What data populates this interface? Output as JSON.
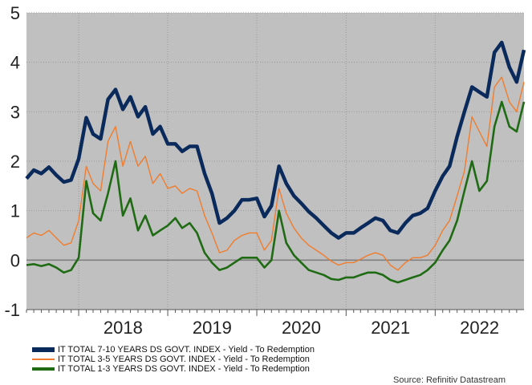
{
  "chart_data": {
    "type": "line",
    "title": "",
    "xlabel": "",
    "ylabel": "",
    "ylim": [
      -1,
      5
    ],
    "xlim": [
      "2017-06-01",
      "2022-12-31"
    ],
    "yticks": [
      5,
      4,
      3,
      2,
      1,
      0,
      -1
    ],
    "xtick_labels": [
      "2018",
      "2019",
      "2020",
      "2021",
      "2022"
    ],
    "grid": true,
    "legend_position": "bottom-left",
    "background": "#c0c0c0",
    "series": [
      {
        "name": "IT TOTAL 7-10 YEARS DS GOVT. INDEX - Yield - To Redemption",
        "color": "#0b2a5c",
        "width": 4.5,
        "points": [
          [
            "2017-06-01",
            1.65
          ],
          [
            "2017-07-01",
            1.82
          ],
          [
            "2017-08-01",
            1.75
          ],
          [
            "2017-09-01",
            1.88
          ],
          [
            "2017-10-01",
            1.72
          ],
          [
            "2017-11-01",
            1.58
          ],
          [
            "2017-12-01",
            1.62
          ],
          [
            "2018-01-01",
            2.05
          ],
          [
            "2018-02-01",
            2.88
          ],
          [
            "2018-03-01",
            2.55
          ],
          [
            "2018-04-01",
            2.45
          ],
          [
            "2018-05-01",
            3.25
          ],
          [
            "2018-06-01",
            3.45
          ],
          [
            "2018-07-01",
            3.05
          ],
          [
            "2018-08-01",
            3.3
          ],
          [
            "2018-09-01",
            2.9
          ],
          [
            "2018-10-01",
            3.1
          ],
          [
            "2018-11-01",
            2.55
          ],
          [
            "2018-12-01",
            2.7
          ],
          [
            "2019-01-01",
            2.35
          ],
          [
            "2019-02-01",
            2.35
          ],
          [
            "2019-03-01",
            2.2
          ],
          [
            "2019-04-01",
            2.3
          ],
          [
            "2019-05-01",
            2.3
          ],
          [
            "2019-06-01",
            1.75
          ],
          [
            "2019-07-01",
            1.35
          ],
          [
            "2019-08-01",
            0.75
          ],
          [
            "2019-09-01",
            0.85
          ],
          [
            "2019-10-01",
            1.0
          ],
          [
            "2019-11-01",
            1.22
          ],
          [
            "2019-12-01",
            1.22
          ],
          [
            "2020-01-01",
            1.25
          ],
          [
            "2020-02-01",
            0.88
          ],
          [
            "2020-03-01",
            1.1
          ],
          [
            "2020-04-01",
            1.9
          ],
          [
            "2020-05-01",
            1.55
          ],
          [
            "2020-06-01",
            1.3
          ],
          [
            "2020-07-01",
            1.15
          ],
          [
            "2020-08-01",
            0.98
          ],
          [
            "2020-09-01",
            0.85
          ],
          [
            "2020-10-01",
            0.7
          ],
          [
            "2020-11-01",
            0.55
          ],
          [
            "2020-12-01",
            0.45
          ],
          [
            "2021-01-01",
            0.55
          ],
          [
            "2021-02-01",
            0.55
          ],
          [
            "2021-03-01",
            0.65
          ],
          [
            "2021-04-01",
            0.75
          ],
          [
            "2021-05-01",
            0.85
          ],
          [
            "2021-06-01",
            0.8
          ],
          [
            "2021-07-01",
            0.6
          ],
          [
            "2021-08-01",
            0.55
          ],
          [
            "2021-09-01",
            0.75
          ],
          [
            "2021-10-01",
            0.9
          ],
          [
            "2021-11-01",
            0.95
          ],
          [
            "2021-12-01",
            1.05
          ],
          [
            "2022-01-01",
            1.4
          ],
          [
            "2022-02-01",
            1.7
          ],
          [
            "2022-03-01",
            1.9
          ],
          [
            "2022-04-01",
            2.5
          ],
          [
            "2022-05-01",
            3.0
          ],
          [
            "2022-06-01",
            3.5
          ],
          [
            "2022-07-01",
            3.4
          ],
          [
            "2022-08-01",
            3.3
          ],
          [
            "2022-09-01",
            4.2
          ],
          [
            "2022-10-01",
            4.4
          ],
          [
            "2022-11-01",
            3.9
          ],
          [
            "2022-12-01",
            3.6
          ],
          [
            "2022-12-31",
            4.25
          ]
        ]
      },
      {
        "name": "IT TOTAL 3-5 YEARS DS GOVT. INDEX - Yield - To Redemption",
        "color": "#f07c2c",
        "width": 1.4,
        "points": [
          [
            "2017-06-01",
            0.45
          ],
          [
            "2017-07-01",
            0.55
          ],
          [
            "2017-08-01",
            0.5
          ],
          [
            "2017-09-01",
            0.6
          ],
          [
            "2017-10-01",
            0.45
          ],
          [
            "2017-11-01",
            0.3
          ],
          [
            "2017-12-01",
            0.35
          ],
          [
            "2018-01-01",
            0.8
          ],
          [
            "2018-02-01",
            1.9
          ],
          [
            "2018-03-01",
            1.55
          ],
          [
            "2018-04-01",
            1.4
          ],
          [
            "2018-05-01",
            2.4
          ],
          [
            "2018-06-01",
            2.7
          ],
          [
            "2018-07-01",
            1.9
          ],
          [
            "2018-08-01",
            2.4
          ],
          [
            "2018-09-01",
            1.9
          ],
          [
            "2018-10-01",
            2.1
          ],
          [
            "2018-11-01",
            1.55
          ],
          [
            "2018-12-01",
            1.75
          ],
          [
            "2019-01-01",
            1.45
          ],
          [
            "2019-02-01",
            1.5
          ],
          [
            "2019-03-01",
            1.35
          ],
          [
            "2019-04-01",
            1.45
          ],
          [
            "2019-05-01",
            1.4
          ],
          [
            "2019-06-01",
            0.9
          ],
          [
            "2019-07-01",
            0.55
          ],
          [
            "2019-08-01",
            0.15
          ],
          [
            "2019-09-01",
            0.2
          ],
          [
            "2019-10-01",
            0.4
          ],
          [
            "2019-11-01",
            0.5
          ],
          [
            "2019-12-01",
            0.55
          ],
          [
            "2020-01-01",
            0.55
          ],
          [
            "2020-02-01",
            0.2
          ],
          [
            "2020-03-01",
            0.4
          ],
          [
            "2020-04-01",
            1.45
          ],
          [
            "2020-05-01",
            0.95
          ],
          [
            "2020-06-01",
            0.65
          ],
          [
            "2020-07-01",
            0.45
          ],
          [
            "2020-08-01",
            0.3
          ],
          [
            "2020-09-01",
            0.2
          ],
          [
            "2020-10-01",
            0.1
          ],
          [
            "2020-11-01",
            -0.02
          ],
          [
            "2020-12-01",
            -0.1
          ],
          [
            "2021-01-01",
            -0.05
          ],
          [
            "2021-02-01",
            -0.05
          ],
          [
            "2021-03-01",
            0.02
          ],
          [
            "2021-04-01",
            0.1
          ],
          [
            "2021-05-01",
            0.15
          ],
          [
            "2021-06-01",
            0.1
          ],
          [
            "2021-07-01",
            -0.1
          ],
          [
            "2021-08-01",
            -0.2
          ],
          [
            "2021-09-01",
            -0.05
          ],
          [
            "2021-10-01",
            0.05
          ],
          [
            "2021-11-01",
            0.05
          ],
          [
            "2021-12-01",
            0.1
          ],
          [
            "2022-01-01",
            0.3
          ],
          [
            "2022-02-01",
            0.6
          ],
          [
            "2022-03-01",
            0.8
          ],
          [
            "2022-04-01",
            1.3
          ],
          [
            "2022-05-01",
            1.8
          ],
          [
            "2022-06-01",
            2.9
          ],
          [
            "2022-07-01",
            2.6
          ],
          [
            "2022-08-01",
            2.3
          ],
          [
            "2022-09-01",
            3.5
          ],
          [
            "2022-10-01",
            3.7
          ],
          [
            "2022-11-01",
            3.2
          ],
          [
            "2022-12-01",
            3.0
          ],
          [
            "2022-12-31",
            3.6
          ]
        ]
      },
      {
        "name": "IT TOTAL 1-3 YEARS DS GOVT. INDEX - Yield - To Redemption",
        "color": "#1f6b14",
        "width": 2.6,
        "points": [
          [
            "2017-06-01",
            -0.1
          ],
          [
            "2017-07-01",
            -0.08
          ],
          [
            "2017-08-01",
            -0.12
          ],
          [
            "2017-09-01",
            -0.08
          ],
          [
            "2017-10-01",
            -0.15
          ],
          [
            "2017-11-01",
            -0.25
          ],
          [
            "2017-12-01",
            -0.2
          ],
          [
            "2018-01-01",
            0.05
          ],
          [
            "2018-02-01",
            1.6
          ],
          [
            "2018-03-01",
            0.95
          ],
          [
            "2018-04-01",
            0.8
          ],
          [
            "2018-05-01",
            1.35
          ],
          [
            "2018-06-01",
            2.0
          ],
          [
            "2018-07-01",
            0.9
          ],
          [
            "2018-08-01",
            1.25
          ],
          [
            "2018-09-01",
            0.6
          ],
          [
            "2018-10-01",
            0.9
          ],
          [
            "2018-11-01",
            0.5
          ],
          [
            "2018-12-01",
            0.6
          ],
          [
            "2019-01-01",
            0.7
          ],
          [
            "2019-02-01",
            0.85
          ],
          [
            "2019-03-01",
            0.65
          ],
          [
            "2019-04-01",
            0.75
          ],
          [
            "2019-05-01",
            0.55
          ],
          [
            "2019-06-01",
            0.15
          ],
          [
            "2019-07-01",
            -0.05
          ],
          [
            "2019-08-01",
            -0.2
          ],
          [
            "2019-09-01",
            -0.15
          ],
          [
            "2019-10-01",
            -0.05
          ],
          [
            "2019-11-01",
            0.05
          ],
          [
            "2019-12-01",
            0.05
          ],
          [
            "2020-01-01",
            0.05
          ],
          [
            "2020-02-01",
            -0.15
          ],
          [
            "2020-03-01",
            0.0
          ],
          [
            "2020-04-01",
            1.0
          ],
          [
            "2020-05-01",
            0.35
          ],
          [
            "2020-06-01",
            0.1
          ],
          [
            "2020-07-01",
            -0.05
          ],
          [
            "2020-08-01",
            -0.2
          ],
          [
            "2020-09-01",
            -0.25
          ],
          [
            "2020-10-01",
            -0.3
          ],
          [
            "2020-11-01",
            -0.38
          ],
          [
            "2020-12-01",
            -0.4
          ],
          [
            "2021-01-01",
            -0.35
          ],
          [
            "2021-02-01",
            -0.35
          ],
          [
            "2021-03-01",
            -0.3
          ],
          [
            "2021-04-01",
            -0.25
          ],
          [
            "2021-05-01",
            -0.25
          ],
          [
            "2021-06-01",
            -0.3
          ],
          [
            "2021-07-01",
            -0.4
          ],
          [
            "2021-08-01",
            -0.45
          ],
          [
            "2021-09-01",
            -0.4
          ],
          [
            "2021-10-01",
            -0.35
          ],
          [
            "2021-11-01",
            -0.3
          ],
          [
            "2021-12-01",
            -0.2
          ],
          [
            "2022-01-01",
            -0.05
          ],
          [
            "2022-02-01",
            0.2
          ],
          [
            "2022-03-01",
            0.4
          ],
          [
            "2022-04-01",
            0.8
          ],
          [
            "2022-05-01",
            1.4
          ],
          [
            "2022-06-01",
            2.0
          ],
          [
            "2022-07-01",
            1.4
          ],
          [
            "2022-08-01",
            1.6
          ],
          [
            "2022-09-01",
            2.7
          ],
          [
            "2022-10-01",
            3.2
          ],
          [
            "2022-11-01",
            2.7
          ],
          [
            "2022-12-01",
            2.6
          ],
          [
            "2022-12-31",
            3.2
          ]
        ]
      }
    ],
    "source_text": "Source: Refinitiv Datastream"
  }
}
